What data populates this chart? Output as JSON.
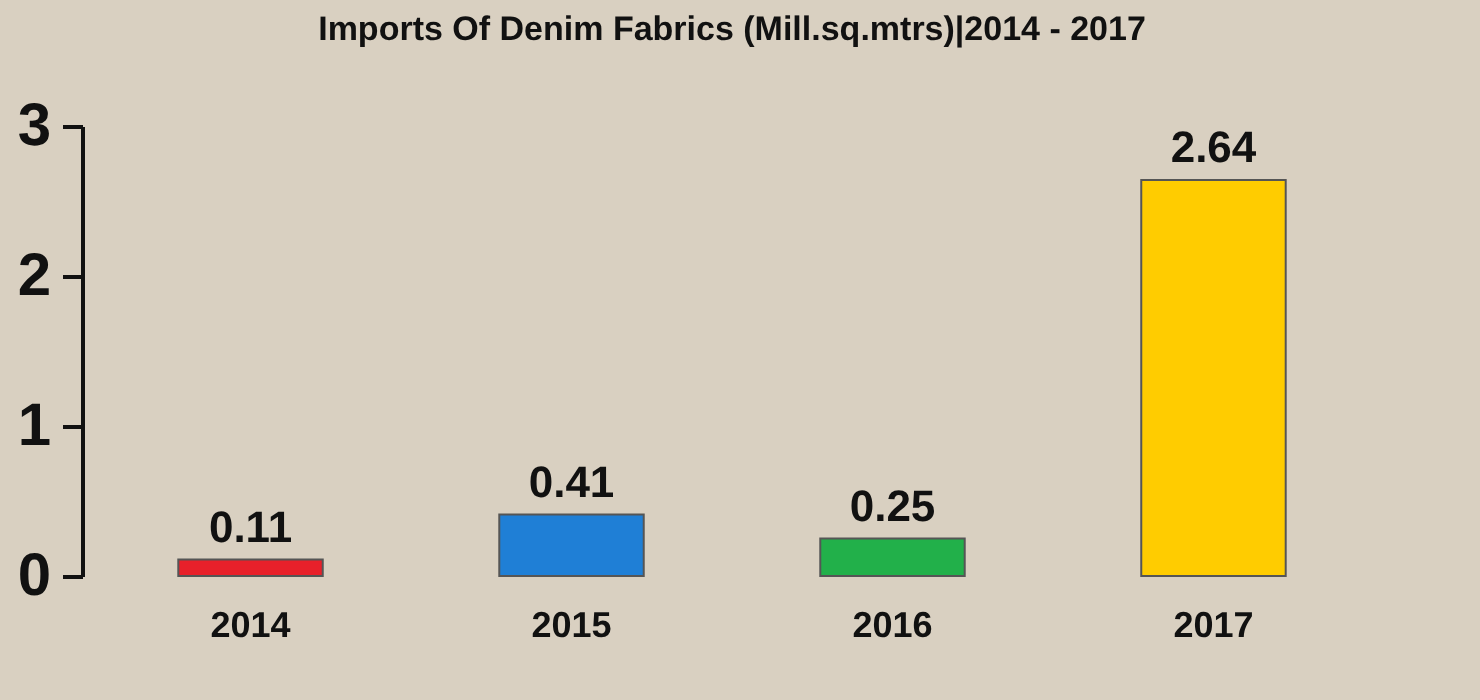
{
  "chart_data": {
    "type": "bar",
    "title": "Imports Of Denim Fabrics (Mill.sq.mtrs)|2014 - 2017",
    "categories": [
      "2014",
      "2015",
      "2016",
      "2017"
    ],
    "values": [
      0.11,
      0.41,
      0.25,
      2.64
    ],
    "colors": [
      "#e8202a",
      "#1f7fd6",
      "#22b04a",
      "#ffcc00"
    ],
    "ylim": [
      0,
      3
    ],
    "yticks": [
      0,
      1,
      2,
      3
    ],
    "grid": false,
    "data_labels": true
  }
}
